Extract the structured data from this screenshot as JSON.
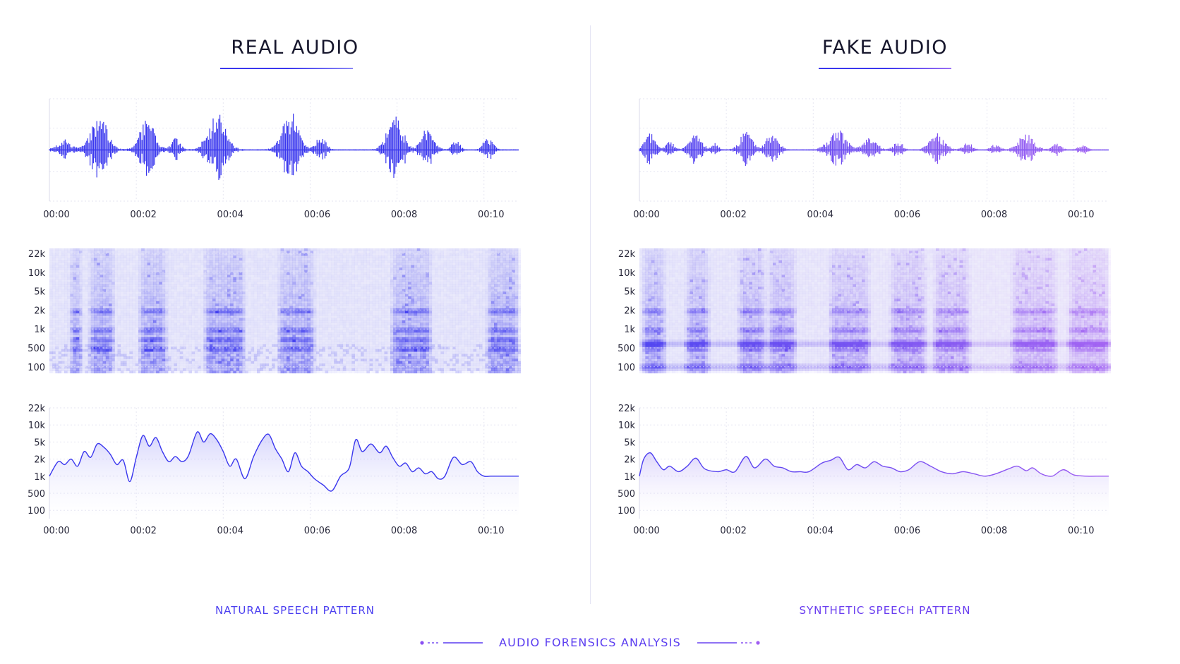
{
  "footer": {
    "label": "AUDIO FORENSICS ANALYSIS"
  },
  "colors": {
    "real": "#3a37ee",
    "fake_start": "#4a3ef0",
    "fake_end": "#a05ef2",
    "caption": "#4a3ef0",
    "grid": "#e6e6f2",
    "spec_bg": "#f2f2fc"
  },
  "panels": [
    {
      "id": "real",
      "title": "REAL AUDIO",
      "caption": "NATURAL SPEECH PATTERN",
      "gradient": false,
      "chart_data": [
        {
          "type": "line",
          "kind": "waveform",
          "x_ticks": [
            "00:00",
            "00:02",
            "00:04",
            "00:06",
            "00:08",
            "00:10"
          ],
          "xlim": [
            0,
            10.8
          ],
          "ylim": [
            -1,
            1
          ],
          "bursts": [
            {
              "t": 0.35,
              "a": 0.25,
              "w": 0.32
            },
            {
              "t": 1.15,
              "a": 0.85,
              "w": 0.38
            },
            {
              "t": 2.25,
              "a": 0.72,
              "w": 0.35
            },
            {
              "t": 2.9,
              "a": 0.3,
              "w": 0.2
            },
            {
              "t": 3.85,
              "a": 0.9,
              "w": 0.4
            },
            {
              "t": 5.55,
              "a": 0.9,
              "w": 0.38
            },
            {
              "t": 6.25,
              "a": 0.35,
              "w": 0.22
            },
            {
              "t": 7.95,
              "a": 0.9,
              "w": 0.35
            },
            {
              "t": 8.7,
              "a": 0.55,
              "w": 0.28
            },
            {
              "t": 9.35,
              "a": 0.25,
              "w": 0.18
            },
            {
              "t": 10.1,
              "a": 0.3,
              "w": 0.22
            }
          ]
        },
        {
          "type": "heatmap",
          "kind": "spectrogram",
          "y_ticks": [
            "22k",
            "10k",
            "5k",
            "2k",
            "1k",
            "500",
            "100"
          ],
          "xlim": [
            0,
            10.8
          ],
          "speech_intervals": [
            [
              0.4,
              0.75
            ],
            [
              0.85,
              1.5
            ],
            [
              2.0,
              2.7
            ],
            [
              3.5,
              4.5
            ],
            [
              5.2,
              6.1
            ],
            [
              7.8,
              8.8
            ],
            [
              10.0,
              10.8
            ]
          ],
          "formant_bands": [
            500,
            700,
            1000,
            2000
          ],
          "constant_bands": [],
          "noise": "natural"
        },
        {
          "type": "area",
          "kind": "pitch_contour",
          "y_ticks": [
            "22k",
            "10k",
            "5k",
            "2k",
            "1k",
            "500",
            "100"
          ],
          "x_ticks": [
            "00:00",
            "00:02",
            "00:04",
            "00:06",
            "00:08",
            "00:10"
          ],
          "xlim": [
            0,
            10.8
          ],
          "x": [
            0.0,
            0.2,
            0.35,
            0.5,
            0.65,
            0.8,
            0.95,
            1.1,
            1.25,
            1.4,
            1.55,
            1.7,
            1.85,
            2.0,
            2.15,
            2.3,
            2.45,
            2.6,
            2.75,
            2.9,
            3.05,
            3.2,
            3.4,
            3.55,
            3.7,
            3.85,
            4.0,
            4.15,
            4.3,
            4.5,
            4.7,
            4.9,
            5.05,
            5.2,
            5.35,
            5.5,
            5.65,
            5.8,
            5.95,
            6.1,
            6.3,
            6.5,
            6.7,
            6.9,
            7.05,
            7.2,
            7.4,
            7.6,
            7.75,
            7.9,
            8.05,
            8.2,
            8.35,
            8.5,
            8.65,
            8.8,
            8.95,
            9.1,
            9.3,
            9.5,
            9.7,
            9.85,
            10.0,
            10.15,
            10.3,
            10.5,
            10.8
          ],
          "y": [
            1000,
            1800,
            1600,
            2000,
            1500,
            3000,
            2200,
            4500,
            3800,
            2600,
            1600,
            1900,
            800,
            2200,
            6500,
            4000,
            6000,
            3000,
            1800,
            2300,
            1800,
            2400,
            7500,
            5000,
            7000,
            5500,
            3000,
            1500,
            2000,
            900,
            2300,
            5500,
            6800,
            3500,
            2000,
            1200,
            2800,
            1500,
            1200,
            900,
            700,
            550,
            1000,
            1400,
            5500,
            3000,
            4500,
            2800,
            4000,
            2200,
            1500,
            1700,
            1200,
            1400,
            1100,
            1200,
            900,
            1000,
            2200,
            1600,
            1800,
            1200,
            1000,
            1000,
            1000,
            1000,
            1000
          ]
        }
      ]
    },
    {
      "id": "fake",
      "title": "FAKE AUDIO",
      "caption": "SYNTHETIC SPEECH PATTERN",
      "gradient": true,
      "chart_data": [
        {
          "type": "line",
          "kind": "waveform",
          "x_ticks": [
            "00:00",
            "00:02",
            "00:04",
            "00:06",
            "00:08",
            "00:10"
          ],
          "xlim": [
            0,
            10.8
          ],
          "ylim": [
            -1,
            1
          ],
          "bursts": [
            {
              "t": 0.25,
              "a": 0.38,
              "w": 0.25
            },
            {
              "t": 0.7,
              "a": 0.22,
              "w": 0.18
            },
            {
              "t": 1.3,
              "a": 0.35,
              "w": 0.3
            },
            {
              "t": 1.75,
              "a": 0.15,
              "w": 0.15
            },
            {
              "t": 2.45,
              "a": 0.45,
              "w": 0.28
            },
            {
              "t": 3.05,
              "a": 0.42,
              "w": 0.28
            },
            {
              "t": 4.55,
              "a": 0.52,
              "w": 0.38
            },
            {
              "t": 5.3,
              "a": 0.35,
              "w": 0.3
            },
            {
              "t": 5.95,
              "a": 0.22,
              "w": 0.2
            },
            {
              "t": 6.85,
              "a": 0.4,
              "w": 0.35
            },
            {
              "t": 7.55,
              "a": 0.2,
              "w": 0.2
            },
            {
              "t": 8.2,
              "a": 0.15,
              "w": 0.2
            },
            {
              "t": 8.9,
              "a": 0.38,
              "w": 0.35
            },
            {
              "t": 9.6,
              "a": 0.15,
              "w": 0.2
            },
            {
              "t": 10.2,
              "a": 0.1,
              "w": 0.2
            }
          ]
        },
        {
          "type": "heatmap",
          "kind": "spectrogram",
          "y_ticks": [
            "22k",
            "10k",
            "5k",
            "2k",
            "1k",
            "500",
            "100"
          ],
          "xlim": [
            0,
            10.8
          ],
          "speech_intervals": [
            [
              0.0,
              0.6
            ],
            [
              1.0,
              1.6
            ],
            [
              2.2,
              2.9
            ],
            [
              2.9,
              3.6
            ],
            [
              4.3,
              5.3
            ],
            [
              5.7,
              6.6
            ],
            [
              6.7,
              7.6
            ],
            [
              8.5,
              9.6
            ],
            [
              9.8,
              10.8
            ]
          ],
          "formant_bands": [
            500,
            620,
            1000,
            2000
          ],
          "constant_bands": [
            110,
            600
          ],
          "noise": "synthetic"
        },
        {
          "type": "area",
          "kind": "pitch_contour",
          "y_ticks": [
            "22k",
            "10k",
            "5k",
            "2k",
            "1k",
            "500",
            "100"
          ],
          "x_ticks": [
            "00:00",
            "00:02",
            "00:04",
            "00:06",
            "00:08",
            "00:10"
          ],
          "xlim": [
            0,
            10.8
          ],
          "x": [
            0.0,
            0.1,
            0.25,
            0.4,
            0.55,
            0.7,
            0.9,
            1.1,
            1.3,
            1.5,
            1.8,
            2.0,
            2.2,
            2.45,
            2.65,
            2.9,
            3.1,
            3.3,
            3.5,
            3.7,
            3.9,
            4.2,
            4.4,
            4.6,
            4.8,
            5.0,
            5.2,
            5.4,
            5.6,
            5.8,
            6.0,
            6.2,
            6.45,
            6.7,
            6.95,
            7.2,
            7.45,
            7.7,
            7.95,
            8.2,
            8.5,
            8.7,
            8.9,
            9.05,
            9.25,
            9.5,
            9.75,
            10.0,
            10.3,
            10.6,
            10.8
          ],
          "y": [
            1000,
            2000,
            2800,
            1800,
            1300,
            1500,
            1200,
            1500,
            2100,
            1350,
            1200,
            1300,
            1200,
            2300,
            1400,
            2000,
            1500,
            1400,
            1200,
            1200,
            1200,
            1700,
            1900,
            2200,
            1300,
            1600,
            1400,
            1800,
            1500,
            1400,
            1200,
            1300,
            1800,
            1500,
            1200,
            1100,
            1200,
            1100,
            1000,
            1100,
            1350,
            1500,
            1250,
            1400,
            1100,
            1000,
            1300,
            1050,
            1000,
            1000,
            1000
          ]
        }
      ]
    }
  ]
}
